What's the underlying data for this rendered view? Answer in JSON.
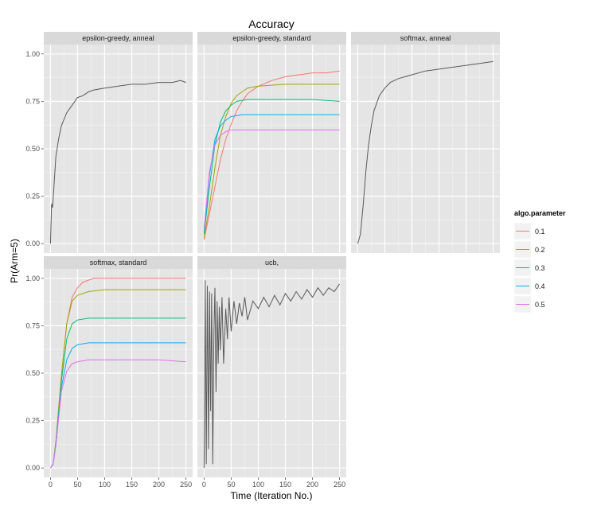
{
  "chart_data": {
    "type": "line",
    "title": "Accuracy",
    "xlabel": "Time (Iteration No.)",
    "ylabel": "Pr(Arm=5)",
    "xlim": [
      0,
      250
    ],
    "ylim": [
      0,
      1
    ],
    "x_ticks": [
      "0",
      "50",
      "100",
      "150",
      "200",
      "250"
    ],
    "y_ticks": [
      "0.00",
      "0.25",
      "0.50",
      "0.75",
      "1.00"
    ],
    "legend": {
      "title": "algo.parameter",
      "entries": [
        {
          "name": "0.1",
          "color": "#F8766D"
        },
        {
          "name": "0.2",
          "color": "#A3A500"
        },
        {
          "name": "0.3",
          "color": "#00BF7D"
        },
        {
          "name": "0.4",
          "color": "#00B0F6"
        },
        {
          "name": "0.5",
          "color": "#E76BF3"
        }
      ]
    },
    "single_series_color": "#595959",
    "panels": [
      {
        "label": "epsilon-greedy, anneal",
        "series": [
          {
            "name": "",
            "points": [
              [
                0,
                0.0
              ],
              [
                2,
                0.21
              ],
              [
                4,
                0.19
              ],
              [
                7,
                0.33
              ],
              [
                10,
                0.46
              ],
              [
                15,
                0.55
              ],
              [
                20,
                0.62
              ],
              [
                30,
                0.69
              ],
              [
                40,
                0.73
              ],
              [
                50,
                0.77
              ],
              [
                60,
                0.78
              ],
              [
                70,
                0.8
              ],
              [
                80,
                0.81
              ],
              [
                100,
                0.82
              ],
              [
                125,
                0.83
              ],
              [
                150,
                0.84
              ],
              [
                175,
                0.84
              ],
              [
                200,
                0.85
              ],
              [
                225,
                0.85
              ],
              [
                240,
                0.86
              ],
              [
                250,
                0.85
              ]
            ]
          }
        ]
      },
      {
        "label": "epsilon-greedy, standard",
        "series": [
          {
            "name": "0.1",
            "points": [
              [
                0,
                0.02
              ],
              [
                10,
                0.16
              ],
              [
                20,
                0.3
              ],
              [
                30,
                0.44
              ],
              [
                40,
                0.55
              ],
              [
                50,
                0.63
              ],
              [
                60,
                0.7
              ],
              [
                70,
                0.75
              ],
              [
                80,
                0.79
              ],
              [
                100,
                0.83
              ],
              [
                125,
                0.86
              ],
              [
                150,
                0.88
              ],
              [
                175,
                0.89
              ],
              [
                200,
                0.9
              ],
              [
                225,
                0.9
              ],
              [
                250,
                0.91
              ]
            ]
          },
          {
            "name": "0.2",
            "points": [
              [
                0,
                0.03
              ],
              [
                10,
                0.2
              ],
              [
                20,
                0.4
              ],
              [
                30,
                0.57
              ],
              [
                40,
                0.67
              ],
              [
                50,
                0.74
              ],
              [
                60,
                0.78
              ],
              [
                70,
                0.8
              ],
              [
                80,
                0.82
              ],
              [
                100,
                0.83
              ],
              [
                150,
                0.84
              ],
              [
                200,
                0.84
              ],
              [
                250,
                0.84
              ]
            ]
          },
          {
            "name": "0.3",
            "points": [
              [
                0,
                0.05
              ],
              [
                10,
                0.3
              ],
              [
                20,
                0.52
              ],
              [
                30,
                0.64
              ],
              [
                40,
                0.7
              ],
              [
                50,
                0.73
              ],
              [
                60,
                0.75
              ],
              [
                80,
                0.76
              ],
              [
                100,
                0.76
              ],
              [
                150,
                0.76
              ],
              [
                200,
                0.76
              ],
              [
                250,
                0.75
              ]
            ]
          },
          {
            "name": "0.4",
            "points": [
              [
                0,
                0.06
              ],
              [
                10,
                0.36
              ],
              [
                20,
                0.55
              ],
              [
                30,
                0.62
              ],
              [
                40,
                0.65
              ],
              [
                50,
                0.67
              ],
              [
                70,
                0.68
              ],
              [
                100,
                0.68
              ],
              [
                150,
                0.68
              ],
              [
                200,
                0.68
              ],
              [
                250,
                0.68
              ]
            ]
          },
          {
            "name": "0.5",
            "points": [
              [
                0,
                0.08
              ],
              [
                10,
                0.38
              ],
              [
                20,
                0.52
              ],
              [
                30,
                0.57
              ],
              [
                40,
                0.59
              ],
              [
                50,
                0.6
              ],
              [
                70,
                0.6
              ],
              [
                100,
                0.6
              ],
              [
                150,
                0.6
              ],
              [
                200,
                0.6
              ],
              [
                250,
                0.6
              ]
            ]
          }
        ]
      },
      {
        "label": "softmax, anneal",
        "series": [
          {
            "name": "",
            "points": [
              [
                0,
                0.0
              ],
              [
                5,
                0.05
              ],
              [
                10,
                0.2
              ],
              [
                15,
                0.38
              ],
              [
                20,
                0.52
              ],
              [
                25,
                0.62
              ],
              [
                30,
                0.7
              ],
              [
                40,
                0.78
              ],
              [
                50,
                0.82
              ],
              [
                60,
                0.85
              ],
              [
                75,
                0.87
              ],
              [
                100,
                0.89
              ],
              [
                125,
                0.91
              ],
              [
                150,
                0.92
              ],
              [
                175,
                0.93
              ],
              [
                200,
                0.94
              ],
              [
                225,
                0.95
              ],
              [
                250,
                0.96
              ]
            ]
          }
        ]
      },
      {
        "label": "softmax, standard",
        "series": [
          {
            "name": "0.1",
            "points": [
              [
                0,
                0.0
              ],
              [
                5,
                0.02
              ],
              [
                10,
                0.14
              ],
              [
                20,
                0.48
              ],
              [
                30,
                0.76
              ],
              [
                40,
                0.9
              ],
              [
                50,
                0.95
              ],
              [
                60,
                0.98
              ],
              [
                80,
                1.0
              ],
              [
                100,
                1.0
              ],
              [
                150,
                1.0
              ],
              [
                200,
                1.0
              ],
              [
                250,
                1.0
              ]
            ]
          },
          {
            "name": "0.2",
            "points": [
              [
                0,
                0.0
              ],
              [
                5,
                0.02
              ],
              [
                10,
                0.14
              ],
              [
                20,
                0.48
              ],
              [
                30,
                0.76
              ],
              [
                40,
                0.88
              ],
              [
                50,
                0.91
              ],
              [
                70,
                0.93
              ],
              [
                100,
                0.94
              ],
              [
                150,
                0.94
              ],
              [
                200,
                0.94
              ],
              [
                250,
                0.94
              ]
            ]
          },
          {
            "name": "0.3",
            "points": [
              [
                0,
                0.0
              ],
              [
                5,
                0.02
              ],
              [
                10,
                0.13
              ],
              [
                20,
                0.45
              ],
              [
                30,
                0.68
              ],
              [
                40,
                0.76
              ],
              [
                50,
                0.78
              ],
              [
                70,
                0.79
              ],
              [
                100,
                0.79
              ],
              [
                150,
                0.79
              ],
              [
                200,
                0.79
              ],
              [
                250,
                0.79
              ]
            ]
          },
          {
            "name": "0.4",
            "points": [
              [
                0,
                0.0
              ],
              [
                5,
                0.02
              ],
              [
                10,
                0.12
              ],
              [
                20,
                0.42
              ],
              [
                30,
                0.57
              ],
              [
                40,
                0.63
              ],
              [
                50,
                0.65
              ],
              [
                70,
                0.66
              ],
              [
                100,
                0.66
              ],
              [
                150,
                0.66
              ],
              [
                200,
                0.66
              ],
              [
                250,
                0.66
              ]
            ]
          },
          {
            "name": "0.5",
            "points": [
              [
                0,
                0.0
              ],
              [
                5,
                0.02
              ],
              [
                10,
                0.12
              ],
              [
                20,
                0.4
              ],
              [
                30,
                0.51
              ],
              [
                40,
                0.55
              ],
              [
                50,
                0.56
              ],
              [
                70,
                0.57
              ],
              [
                100,
                0.57
              ],
              [
                150,
                0.57
              ],
              [
                200,
                0.57
              ],
              [
                250,
                0.56
              ]
            ]
          }
        ]
      },
      {
        "label": "ucb,",
        "series": [
          {
            "name": "",
            "points": [
              [
                0,
                0.0
              ],
              [
                2,
                0.99
              ],
              [
                4,
                0.02
              ],
              [
                6,
                0.96
              ],
              [
                8,
                0.1
              ],
              [
                10,
                0.93
              ],
              [
                12,
                0.3
              ],
              [
                14,
                0.92
              ],
              [
                16,
                0.02
              ],
              [
                18,
                0.7
              ],
              [
                20,
                0.95
              ],
              [
                22,
                0.4
              ],
              [
                24,
                0.88
              ],
              [
                26,
                0.55
              ],
              [
                28,
                0.85
              ],
              [
                30,
                0.62
              ],
              [
                33,
                0.9
              ],
              [
                36,
                0.55
              ],
              [
                40,
                0.84
              ],
              [
                43,
                0.68
              ],
              [
                46,
                0.9
              ],
              [
                50,
                0.72
              ],
              [
                55,
                0.88
              ],
              [
                60,
                0.76
              ],
              [
                65,
                0.87
              ],
              [
                70,
                0.8
              ],
              [
                75,
                0.9
              ],
              [
                80,
                0.78
              ],
              [
                90,
                0.88
              ],
              [
                100,
                0.84
              ],
              [
                110,
                0.9
              ],
              [
                120,
                0.85
              ],
              [
                130,
                0.91
              ],
              [
                140,
                0.86
              ],
              [
                150,
                0.92
              ],
              [
                160,
                0.88
              ],
              [
                170,
                0.93
              ],
              [
                180,
                0.89
              ],
              [
                190,
                0.94
              ],
              [
                200,
                0.9
              ],
              [
                210,
                0.95
              ],
              [
                220,
                0.91
              ],
              [
                230,
                0.95
              ],
              [
                240,
                0.93
              ],
              [
                250,
                0.97
              ]
            ]
          }
        ]
      }
    ]
  }
}
